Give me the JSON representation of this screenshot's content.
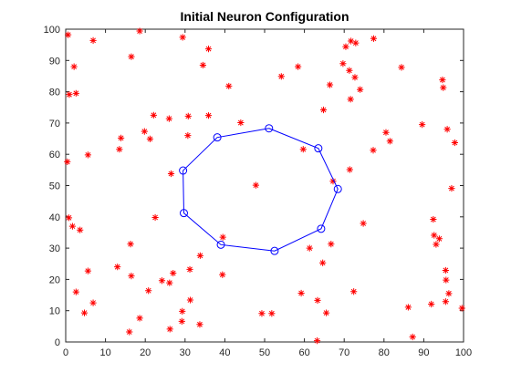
{
  "chart_data": {
    "type": "scatter",
    "title": "Initial Neuron Configuration",
    "xlabel": "",
    "ylabel": "",
    "xlim": [
      0,
      100
    ],
    "ylim": [
      0,
      100
    ],
    "xticks": [
      0,
      10,
      20,
      30,
      40,
      50,
      60,
      70,
      80,
      90,
      100
    ],
    "yticks": [
      0,
      10,
      20,
      30,
      40,
      50,
      60,
      70,
      80,
      90,
      100
    ],
    "grid": false,
    "legend": "none",
    "series": [
      {
        "marker": "star",
        "color": "#ff0000",
        "points": [
          [
            0.6,
            98.2
          ],
          [
            2.1,
            88
          ],
          [
            6.9,
            96.4
          ],
          [
            18.6,
            99.4
          ],
          [
            29.4,
            97.4
          ],
          [
            16.5,
            91.2
          ],
          [
            0.9,
            79.1
          ],
          [
            2.6,
            79.5
          ],
          [
            34.5,
            88.5
          ],
          [
            35.9,
            93.7
          ],
          [
            41,
            81.8
          ],
          [
            54.2,
            84.9
          ],
          [
            58.4,
            88
          ],
          [
            64.8,
            74.2
          ],
          [
            66.4,
            82.2
          ],
          [
            69.7,
            89
          ],
          [
            70.4,
            94.4
          ],
          [
            71.3,
            86.8
          ],
          [
            71.7,
            96.2
          ],
          [
            72.9,
            95.6
          ],
          [
            72.7,
            84.6
          ],
          [
            74,
            80.7
          ],
          [
            77.4,
            97
          ],
          [
            84.4,
            87.8
          ],
          [
            71.6,
            77.6
          ],
          [
            94.7,
            83.8
          ],
          [
            94.9,
            81.3
          ],
          [
            13.9,
            65.2
          ],
          [
            13.5,
            61.6
          ],
          [
            5.6,
            59.8
          ],
          [
            0.4,
            57.6
          ],
          [
            19.8,
            67.3
          ],
          [
            21.2,
            64.9
          ],
          [
            22.1,
            72.5
          ],
          [
            26,
            71.4
          ],
          [
            30.8,
            72.2
          ],
          [
            30.7,
            66
          ],
          [
            35.9,
            72.4
          ],
          [
            44,
            70.1
          ],
          [
            26.5,
            53.8
          ],
          [
            59.7,
            61.6
          ],
          [
            67.2,
            51.4
          ],
          [
            71.4,
            55.1
          ],
          [
            77.3,
            61.3
          ],
          [
            80.5,
            67
          ],
          [
            81.5,
            64.2
          ],
          [
            89.6,
            69.5
          ],
          [
            95.9,
            68
          ],
          [
            97.8,
            63.7
          ],
          [
            97,
            49.1
          ],
          [
            0.8,
            39.7
          ],
          [
            1.7,
            37
          ],
          [
            3.6,
            35.8
          ],
          [
            22.5,
            39.8
          ],
          [
            47.8,
            50.1
          ],
          [
            39.5,
            33.5
          ],
          [
            16.3,
            31.3
          ],
          [
            33.8,
            27.6
          ],
          [
            31.2,
            23.2
          ],
          [
            39.4,
            21.5
          ],
          [
            27,
            22
          ],
          [
            24.2,
            19.6
          ],
          [
            26.1,
            18.9
          ],
          [
            20.8,
            16.4
          ],
          [
            13,
            24
          ],
          [
            16.5,
            21.1
          ],
          [
            5.6,
            22.7
          ],
          [
            2.6,
            16
          ],
          [
            4.7,
            9.3
          ],
          [
            6.9,
            12.5
          ],
          [
            16,
            3.2
          ],
          [
            18.6,
            7.6
          ],
          [
            26.2,
            4.1
          ],
          [
            29.2,
            6.6
          ],
          [
            29.3,
            9.8
          ],
          [
            31.3,
            13.4
          ],
          [
            33.7,
            5.6
          ],
          [
            49.3,
            9.1
          ],
          [
            51.8,
            9.1
          ],
          [
            59.2,
            15.6
          ],
          [
            63.3,
            13.3
          ],
          [
            64.6,
            25.3
          ],
          [
            61.3,
            30
          ],
          [
            66.7,
            31.3
          ],
          [
            63.2,
            0.4
          ],
          [
            65.5,
            9.3
          ],
          [
            72.4,
            16.1
          ],
          [
            74.8,
            37.9
          ],
          [
            86.1,
            11.1
          ],
          [
            87.2,
            1.6
          ],
          [
            91.9,
            12.1
          ],
          [
            92.4,
            39.2
          ],
          [
            92.6,
            34.1
          ],
          [
            93.1,
            31.2
          ],
          [
            93.9,
            33
          ],
          [
            95.5,
            22.9
          ],
          [
            95.6,
            19.8
          ],
          [
            95.5,
            12.9
          ],
          [
            96.3,
            15.5
          ],
          [
            99.6,
            10.8
          ]
        ]
      },
      {
        "marker": "circle",
        "color": "#0000ff",
        "line": true,
        "points": [
          [
            51.1,
            68.3
          ],
          [
            63.5,
            61.9
          ],
          [
            68.4,
            48.9
          ],
          [
            64.2,
            36.2
          ],
          [
            52.5,
            29.1
          ],
          [
            39,
            31.1
          ],
          [
            29.7,
            41.2
          ],
          [
            29.5,
            54.8
          ],
          [
            38.1,
            65.4
          ],
          [
            51.1,
            68.3
          ]
        ]
      }
    ]
  }
}
